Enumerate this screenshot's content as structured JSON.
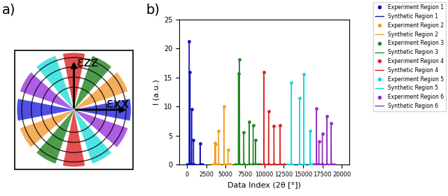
{
  "panel_labels": [
    "a)",
    "b)"
  ],
  "diagram": {
    "arrows": [
      {
        "label": "εzz",
        "direction": "up"
      },
      {
        "label": "εxx",
        "direction": "right"
      }
    ],
    "sector_colors": [
      "#3030e0",
      "#f5a040",
      "#2e8b2e",
      "#e03030",
      "#30e0e0",
      "#a040e0",
      "#3030e0",
      "#f5a040",
      "#2e8b2e",
      "#e03030",
      "#30e0e0",
      "#a040e0"
    ]
  },
  "chart_data": {
    "type": "line",
    "x_label": "Data Index (2θ [°])",
    "y_label": "I (a.u.)",
    "xlim": [
      -1000,
      21000
    ],
    "ylim": [
      0,
      25
    ],
    "xticks": [
      0,
      2500,
      5000,
      7500,
      10000,
      12500,
      15000,
      17500,
      20000
    ],
    "yticks": [
      0,
      5,
      10,
      15,
      20,
      25
    ],
    "legend": "upper right",
    "series": [
      {
        "name": "Experiment Region 1",
        "type": "scatter",
        "marker": "o",
        "color": "#1010c0",
        "x": [
          0,
          280,
          300,
          320,
          380,
          400,
          420,
          580,
          600,
          620,
          830,
          850,
          870,
          1680,
          1700,
          1720,
          2000
        ],
        "values": [
          0,
          0,
          21.3,
          0,
          0,
          16,
          0,
          0,
          9.6,
          0,
          0,
          4.3,
          0,
          0,
          3.6,
          0,
          0
        ]
      },
      {
        "name": "Synthetic Region 1",
        "type": "line",
        "color": "#1010c0",
        "x": [
          0,
          280,
          300,
          320,
          380,
          400,
          420,
          580,
          600,
          620,
          830,
          850,
          870,
          1680,
          1700,
          1720,
          2000
        ],
        "values": [
          0,
          0,
          21.3,
          0,
          0,
          16,
          0,
          0,
          9.6,
          0,
          0,
          4.3,
          0,
          0,
          3.6,
          0,
          0
        ]
      },
      {
        "name": "Experiment Region 2",
        "type": "scatter",
        "marker": "o",
        "color": "#f0a020",
        "x": [
          3300,
          3580,
          3600,
          3620,
          3680,
          3700,
          3720,
          4080,
          4100,
          4120,
          4780,
          4800,
          4820,
          5280,
          5300,
          5320,
          5600
        ],
        "values": [
          0,
          0,
          3.8,
          0,
          0,
          3.5,
          0,
          0,
          5.8,
          0,
          0,
          10,
          0,
          0,
          2.5,
          0,
          0
        ]
      },
      {
        "name": "Synthetic Region 2",
        "type": "line",
        "color": "#f0a020",
        "x": [
          3300,
          3580,
          3600,
          3620,
          3680,
          3700,
          3720,
          4080,
          4100,
          4120,
          4780,
          4800,
          4820,
          5280,
          5300,
          5320,
          5600
        ],
        "values": [
          0,
          0,
          3.8,
          0,
          0,
          3.5,
          0,
          0,
          5.8,
          0,
          0,
          10,
          0,
          0,
          2.5,
          0,
          0
        ]
      },
      {
        "name": "Experiment Region 3",
        "type": "scatter",
        "marker": "o",
        "color": "#208a20",
        "x": [
          6200,
          6630,
          6650,
          6670,
          6780,
          6800,
          6820,
          7330,
          7350,
          7370,
          8030,
          8050,
          8070,
          8530,
          8550,
          8570,
          8830,
          8850,
          8870,
          9200
        ],
        "values": [
          0,
          0,
          15.7,
          0,
          0,
          18.1,
          0,
          0,
          5.6,
          0,
          0,
          7.4,
          0,
          0,
          6.8,
          0,
          0,
          4.3,
          0,
          0
        ]
      },
      {
        "name": "Synthetic Region 3",
        "type": "line",
        "color": "#208a20",
        "x": [
          6200,
          6630,
          6650,
          6670,
          6780,
          6800,
          6820,
          7330,
          7350,
          7370,
          8030,
          8050,
          8070,
          8530,
          8550,
          8570,
          8830,
          8850,
          8870,
          9200
        ],
        "values": [
          0,
          0,
          15.7,
          0,
          0,
          18.1,
          0,
          0,
          5.6,
          0,
          0,
          7.4,
          0,
          0,
          6.8,
          0,
          0,
          4.3,
          0,
          0
        ]
      },
      {
        "name": "Experiment Region 4",
        "type": "scatter",
        "marker": "o",
        "color": "#e02020",
        "x": [
          9500,
          9930,
          9950,
          9970,
          10530,
          10550,
          10570,
          11230,
          11250,
          11270,
          12030,
          12050,
          12070,
          12600
        ],
        "values": [
          0,
          0,
          16,
          0,
          0,
          9.2,
          0,
          0,
          6.7,
          0,
          0,
          6.8,
          0,
          0
        ]
      },
      {
        "name": "Synthetic Region 4",
        "type": "line",
        "color": "#e02020",
        "x": [
          9500,
          9930,
          9950,
          9970,
          10530,
          10550,
          10570,
          11230,
          11250,
          11270,
          12030,
          12050,
          12070,
          12600
        ],
        "values": [
          0,
          0,
          16,
          0,
          0,
          9.2,
          0,
          0,
          6.7,
          0,
          0,
          6.8,
          0,
          0
        ]
      },
      {
        "name": "Experiment Region 5",
        "type": "scatter",
        "marker": "o",
        "color": "#10d8e0",
        "x": [
          13000,
          13480,
          13500,
          13520,
          14530,
          14550,
          14570,
          15080,
          15100,
          15120,
          15880,
          15900,
          15920,
          16200
        ],
        "values": [
          0,
          0,
          14.2,
          0,
          0,
          11.5,
          0,
          0,
          15.6,
          0,
          0,
          5.8,
          0,
          0
        ]
      },
      {
        "name": "Synthetic Region 5",
        "type": "line",
        "color": "#10d8e0",
        "x": [
          13000,
          13480,
          13500,
          13520,
          14530,
          14550,
          14570,
          15080,
          15100,
          15120,
          15880,
          15900,
          15920,
          16200
        ],
        "values": [
          0,
          0,
          14.2,
          0,
          0,
          11.5,
          0,
          0,
          15.6,
          0,
          0,
          5.8,
          0,
          0
        ]
      },
      {
        "name": "Experiment Region 6",
        "type": "scatter",
        "marker": "o",
        "color": "#9030c0",
        "x": [
          16500,
          16730,
          16750,
          16770,
          17030,
          17050,
          17070,
          17480,
          17500,
          17520,
          18080,
          18100,
          18120,
          18630,
          18650,
          18670,
          19000
        ],
        "values": [
          0,
          0,
          9.7,
          0,
          0,
          4.0,
          0,
          0,
          5.3,
          0,
          0,
          8.4,
          0,
          0,
          7.1,
          0,
          0
        ]
      },
      {
        "name": "Synthetic Region 6",
        "type": "line",
        "color": "#9030c0",
        "x": [
          16500,
          16730,
          16750,
          16770,
          17030,
          17050,
          17070,
          17480,
          17500,
          17520,
          18080,
          18100,
          18120,
          18630,
          18650,
          18670,
          19000
        ],
        "values": [
          0,
          0,
          9.7,
          0,
          0,
          4.0,
          0,
          0,
          5.3,
          0,
          0,
          8.4,
          0,
          0,
          7.1,
          0,
          0
        ]
      }
    ]
  }
}
